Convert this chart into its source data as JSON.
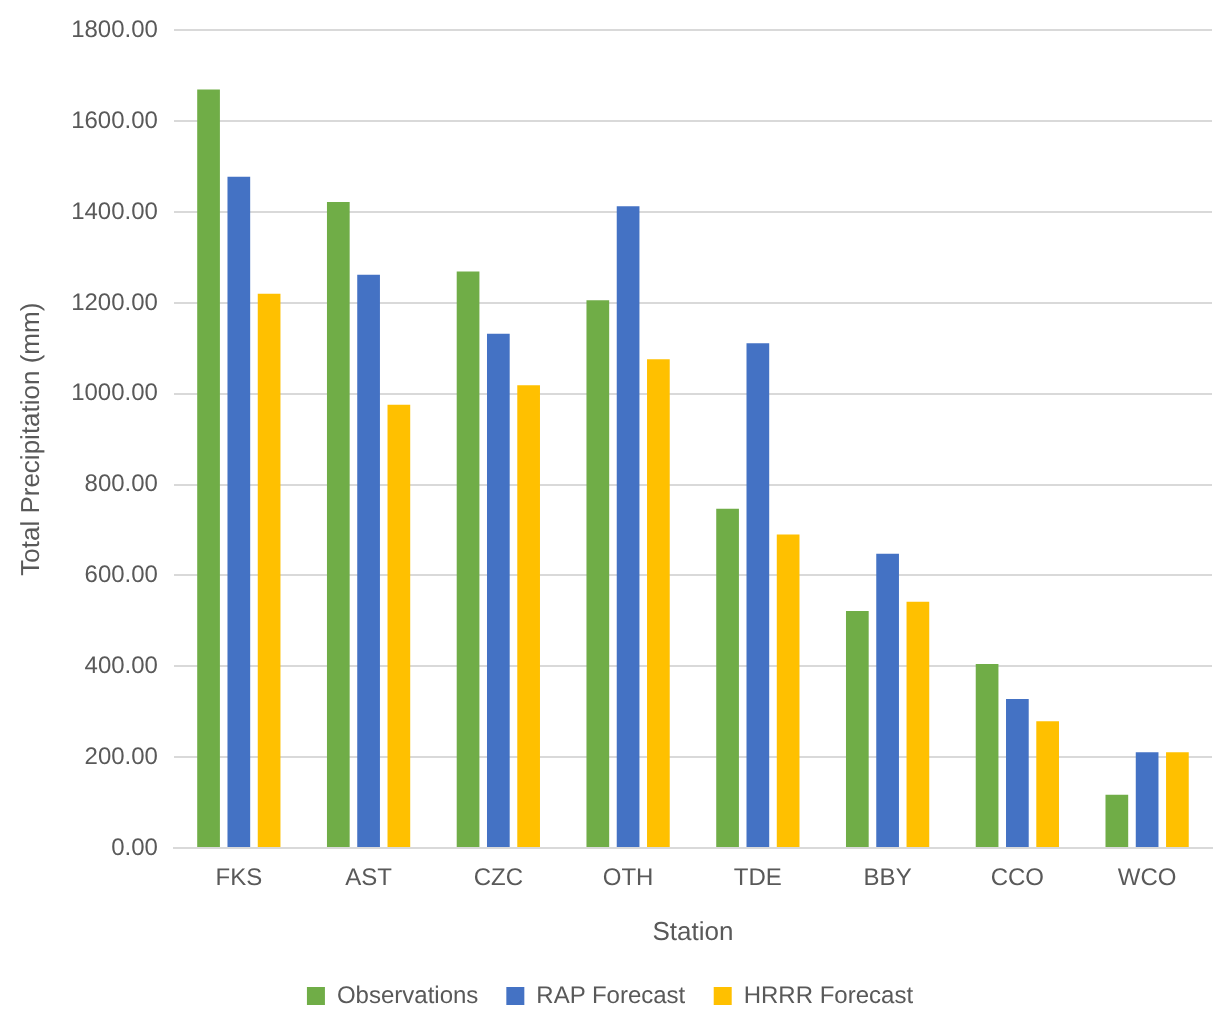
{
  "chart_data": {
    "type": "bar",
    "xlabel": "Station",
    "ylabel": "Total Precipitation (mm)",
    "categories": [
      "FKS",
      "AST",
      "CZC",
      "OTH",
      "TDE",
      "BBY",
      "CCO",
      "WCO"
    ],
    "series": [
      {
        "name": "Observations",
        "color": "#70ad47",
        "values": [
          1670,
          1422,
          1269,
          1206,
          747,
          522,
          405,
          117
        ]
      },
      {
        "name": "RAP Forecast",
        "color": "#4472c4",
        "values": [
          1478,
          1262,
          1132,
          1413,
          1111,
          648,
          328,
          211
        ]
      },
      {
        "name": "HRRR Forecast",
        "color": "#ffc000",
        "values": [
          1220,
          976,
          1019,
          1076,
          690,
          542,
          279,
          211
        ]
      }
    ],
    "ylim": [
      0,
      1800
    ],
    "yticks": [
      {
        "value": 0,
        "label": "0.00"
      },
      {
        "value": 200,
        "label": "200.00"
      },
      {
        "value": 400,
        "label": "400.00"
      },
      {
        "value": 600,
        "label": "600.00"
      },
      {
        "value": 800,
        "label": "800.00"
      },
      {
        "value": 1000,
        "label": "1000.00"
      },
      {
        "value": 1200,
        "label": "1200.00"
      },
      {
        "value": 1400,
        "label": "1400.00"
      },
      {
        "value": 1600,
        "label": "1600.00"
      },
      {
        "value": 1800,
        "label": "1800.00"
      }
    ],
    "grid": "y",
    "legend": "bottom"
  }
}
